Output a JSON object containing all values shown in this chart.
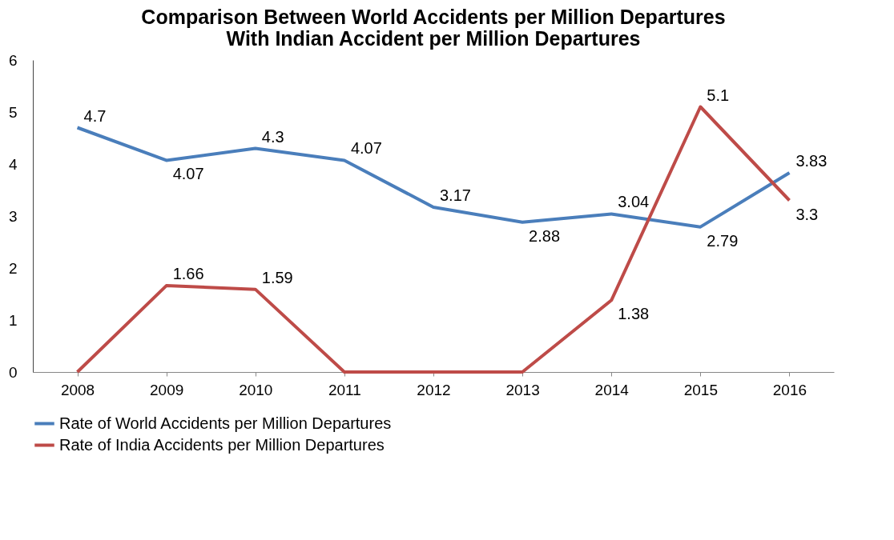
{
  "chart_data": {
    "type": "line",
    "title": "Comparison Between World Accidents per Million Departures\nWith Indian Accident per Million Departures",
    "categories": [
      "2008",
      "2009",
      "2010",
      "2011",
      "2012",
      "2013",
      "2014",
      "2015",
      "2016"
    ],
    "series": [
      {
        "name": "Rate of World Accidents per Million Departures",
        "color": "#4a7ebb",
        "values": [
          4.7,
          4.07,
          4.3,
          4.07,
          3.17,
          2.88,
          3.04,
          2.79,
          3.83
        ],
        "value_labels": [
          "4.7",
          "4.07",
          "4.3",
          "4.07",
          "3.17",
          "2.88",
          "3.04",
          "2.79",
          "3.83"
        ]
      },
      {
        "name": "Rate of India Accidents per Million Departures",
        "color": "#be4b48",
        "values": [
          0,
          1.66,
          1.59,
          0,
          0,
          0,
          1.38,
          5.1,
          3.3
        ],
        "value_labels": [
          null,
          "1.66",
          "1.59",
          null,
          null,
          null,
          "1.38",
          "5.1",
          "3.3"
        ]
      }
    ],
    "ylim": [
      0,
      6
    ],
    "yticks": [
      0,
      1,
      2,
      3,
      4,
      5,
      6
    ],
    "grid": false,
    "legend": "bottom",
    "marker": "none",
    "line_style": "solid"
  }
}
